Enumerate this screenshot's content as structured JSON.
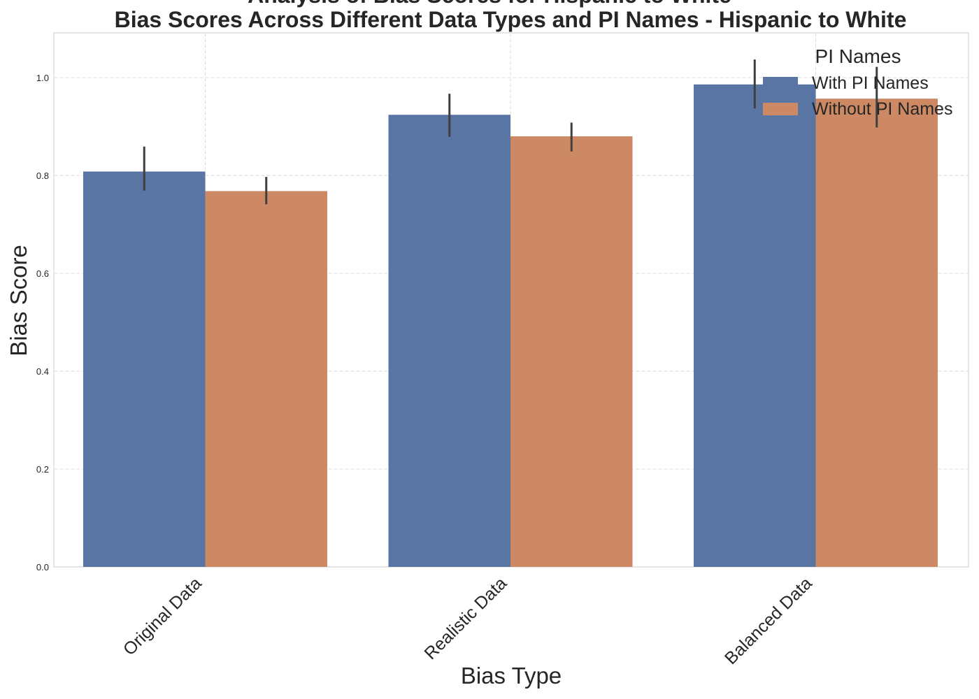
{
  "chart_data": {
    "type": "bar",
    "title": "Analysis of Bias Scores for Hispanic to White",
    "subtitle": "Bias Scores Across Different Data Types and PI Names - Hispanic to White",
    "xlabel": "Bias Type",
    "ylabel": "Bias Score",
    "ylim": [
      0,
      1.0
    ],
    "yticks": [
      "0.0",
      "0.2",
      "0.4",
      "0.6",
      "0.8",
      "1.0"
    ],
    "categories": [
      "Original Data",
      "Realistic Data",
      "Balanced Data"
    ],
    "series": [
      {
        "name": "With PI Names",
        "color": "#5975a4",
        "values": [
          0.808,
          0.924,
          0.986
        ],
        "err_low": [
          0.769,
          0.879,
          0.937
        ],
        "err_high": [
          0.859,
          0.967,
          1.037
        ]
      },
      {
        "name": "Without PI Names",
        "color": "#cc8963",
        "values": [
          0.768,
          0.88,
          0.957
        ],
        "err_low": [
          0.741,
          0.849,
          0.898
        ],
        "err_high": [
          0.797,
          0.908,
          1.022
        ]
      }
    ],
    "legend": {
      "title": "PI Names",
      "position": "top-right"
    },
    "grid": true
  }
}
